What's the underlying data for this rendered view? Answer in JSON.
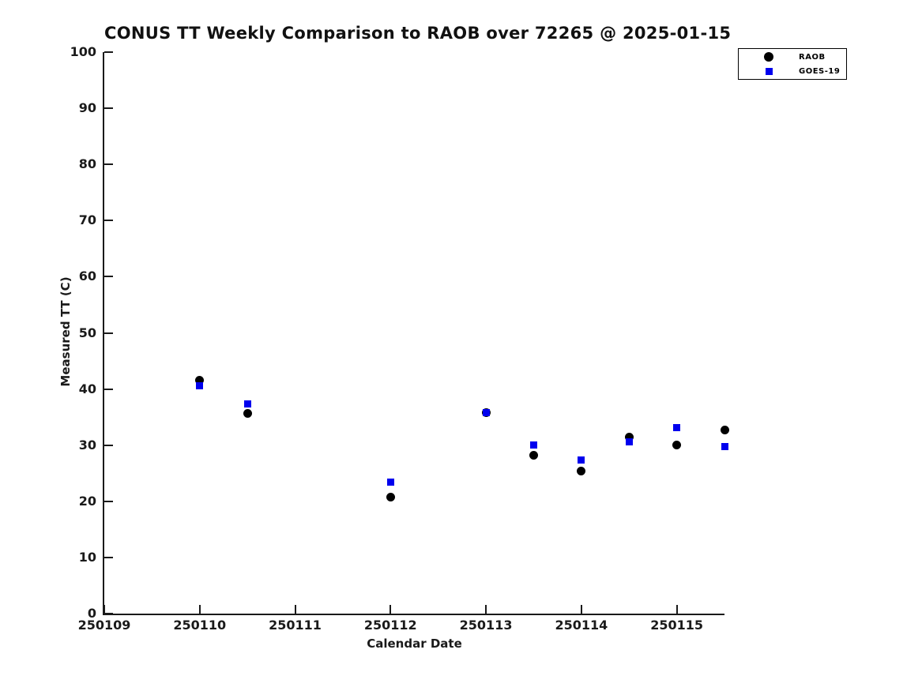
{
  "figure": {
    "background_color": "#ffffff",
    "text_color": "#1a1a1a"
  },
  "chart_data": {
    "type": "scatter",
    "title": "CONUS TT Weekly Comparison to RAOB over 72265 @ 2025-01-15",
    "xlabel": "Calendar Date",
    "ylabel": "Measured TT (C)",
    "xlim": [
      0,
      6.5
    ],
    "ylim": [
      0,
      100
    ],
    "y_ticks": [
      0,
      10,
      20,
      30,
      40,
      50,
      60,
      70,
      80,
      90,
      100
    ],
    "x_tick_positions": [
      0,
      1,
      2,
      3,
      4,
      5,
      6
    ],
    "x_tick_labels": [
      "250109",
      "250110",
      "250111",
      "250112",
      "250113",
      "250114",
      "250115"
    ],
    "x_offset_note": "x values are days after 250109; half-day offsets are 12Z soundings",
    "grid": false,
    "legend_position": "top-right",
    "series": [
      {
        "name": "RAOB",
        "marker": "circle",
        "color": "#000000",
        "marker_size": 11,
        "points": [
          [
            1,
            41.6
          ],
          [
            1.5,
            35.6
          ],
          [
            3,
            20.8
          ],
          [
            4,
            35.8
          ],
          [
            4.5,
            28.2
          ],
          [
            5,
            25.4
          ],
          [
            5.5,
            31.5
          ],
          [
            6,
            30.0
          ],
          [
            6.5,
            32.7
          ]
        ]
      },
      {
        "name": "GOES-19",
        "marker": "square",
        "color": "#0000ee",
        "marker_size": 9,
        "points": [
          [
            1,
            40.6
          ],
          [
            1.5,
            37.4
          ],
          [
            3,
            23.4
          ],
          [
            4,
            35.8
          ],
          [
            4.5,
            30.0
          ],
          [
            5,
            27.4
          ],
          [
            5.5,
            30.6
          ],
          [
            6,
            33.1
          ],
          [
            6.5,
            29.7
          ]
        ]
      }
    ]
  }
}
